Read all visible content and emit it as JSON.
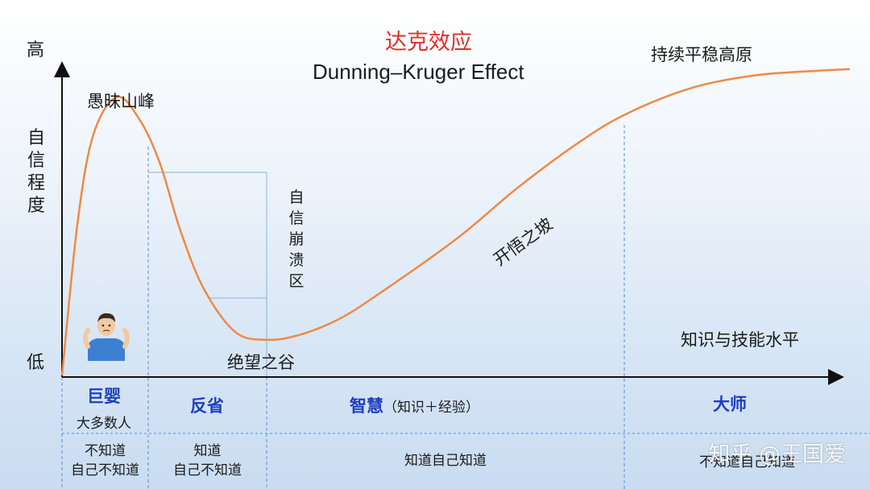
{
  "chart_data": {
    "type": "line",
    "title": "达克效应",
    "subtitle": "Dunning–Kruger Effect",
    "ylabel": "自信程度",
    "xlabel": "知识与技能水平",
    "y_high_label": "高",
    "y_low_label": "低",
    "xlim": [
      0,
      1
    ],
    "ylim": [
      0,
      1
    ],
    "series": [
      {
        "x": [
          0.0,
          0.02,
          0.04,
          0.07,
          0.1,
          0.125,
          0.15,
          0.18,
          0.22,
          0.26,
          0.3,
          0.35,
          0.4,
          0.5,
          0.58,
          0.66,
          0.72,
          0.8,
          0.88,
          0.96,
          1.0
        ],
        "y": [
          0.0,
          0.5,
          0.78,
          0.9,
          0.82,
          0.68,
          0.47,
          0.28,
          0.14,
          0.115,
          0.13,
          0.18,
          0.26,
          0.44,
          0.61,
          0.76,
          0.85,
          0.93,
          0.97,
          0.985,
          0.99
        ]
      }
    ],
    "annotations": {
      "peak": "愚昧山峰",
      "collapse": "自信崩溃区",
      "valley": "绝望之谷",
      "slope": "开悟之坡",
      "plateau": "持续平稳高原"
    },
    "stages": [
      {
        "name": "巨婴",
        "sub": "大多数人",
        "note": "",
        "knowledge": [
          "不知道",
          "自己不知道"
        ]
      },
      {
        "name": "反省",
        "sub": "",
        "note": "",
        "knowledge": [
          "知道",
          "自己不知道"
        ]
      },
      {
        "name": "智慧",
        "sub": "",
        "note": "（知识＋经验）",
        "knowledge": [
          "知道自己知道"
        ]
      },
      {
        "name": "大师",
        "sub": "",
        "note": "",
        "knowledge": [
          "不知道自己知道"
        ]
      }
    ],
    "colors": {
      "curve": "#ee8a45",
      "axis": "#111111",
      "stage_text": "#1f3fbf",
      "title": "#e0302a",
      "divider": "#5b8fd6"
    },
    "grid": false
  },
  "emoji_icon": "person-shrugging-icon",
  "watermark": "知乎 @王国爱"
}
